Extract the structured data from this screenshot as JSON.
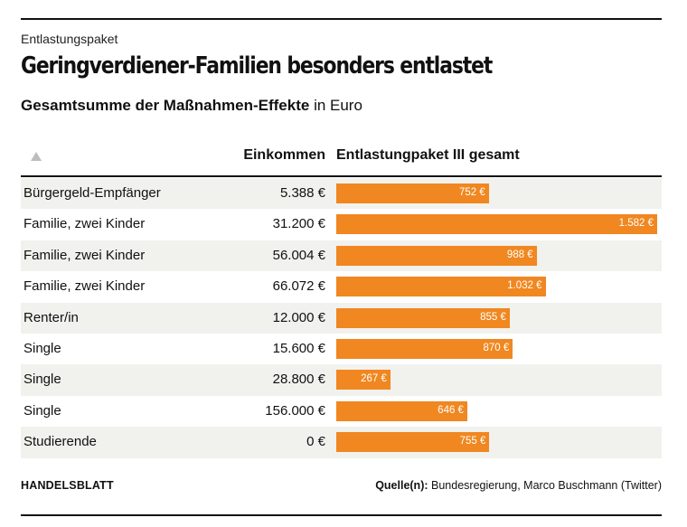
{
  "header": {
    "kicker": "Entlastungspaket",
    "title": "Geringverdiener-Familien besonders entlastet",
    "subtitle_bold": "Gesamtsumme der Maßnahmen-Effekte",
    "subtitle_rest": "in Euro"
  },
  "table": {
    "col_income": "Einkommen",
    "col_bar": "Entlastungpaket III gesamt"
  },
  "chart_data": {
    "type": "bar",
    "orientation": "horizontal",
    "max_value": 1582,
    "rows": [
      {
        "label": "Bürgergeld-Empfänger",
        "income": "5.388 €",
        "value": 752,
        "value_label": "752 €"
      },
      {
        "label": "Familie, zwei Kinder",
        "income": "31.200 €",
        "value": 1582,
        "value_label": "1.582 €"
      },
      {
        "label": "Familie, zwei Kinder",
        "income": "56.004 €",
        "value": 988,
        "value_label": "988 €"
      },
      {
        "label": "Familie, zwei Kinder",
        "income": "66.072 €",
        "value": 1032,
        "value_label": "1.032 €"
      },
      {
        "label": "Renter/in",
        "income": "12.000 €",
        "value": 855,
        "value_label": "855 €"
      },
      {
        "label": "Single",
        "income": "15.600 €",
        "value": 870,
        "value_label": "870 €"
      },
      {
        "label": "Single",
        "income": "28.800 €",
        "value": 267,
        "value_label": "267 €"
      },
      {
        "label": "Single",
        "income": "156.000 €",
        "value": 646,
        "value_label": "646 €"
      },
      {
        "label": "Studierende",
        "income": "0 €",
        "value": 755,
        "value_label": "755 €"
      }
    ],
    "bar_color": "#f08720"
  },
  "footer": {
    "brand": "HANDELSBLATT",
    "source_label": "Quelle(n):",
    "source_text": "Bundesregierung, Marco Buschmann (Twitter)"
  },
  "icons": {
    "sort": "sort-ascending-icon"
  }
}
